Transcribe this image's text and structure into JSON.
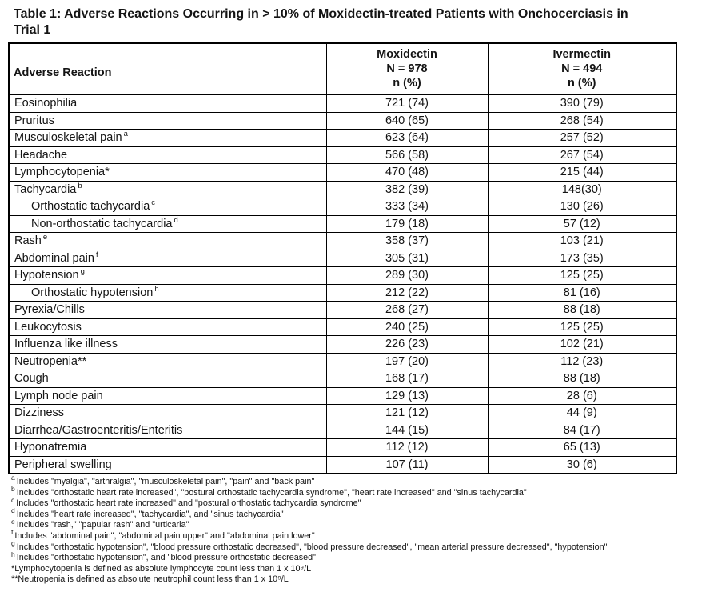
{
  "title": {
    "line1": "Table 1: Adverse Reactions Occurring in > 10% of Moxidectin-treated Patients with Onchocerciasis in",
    "line2": "Trial 1"
  },
  "table": {
    "headers": {
      "reaction": "Adverse Reaction",
      "moxidectin": [
        "Moxidectin",
        "N = 978",
        "n (%)"
      ],
      "ivermectin": [
        "Ivermectin",
        "N = 494",
        "n (%)"
      ]
    },
    "rows": [
      {
        "label": "Eosinophilia",
        "sup": "",
        "indent": false,
        "moxidectin": "721 (74)",
        "ivermectin": "390 (79)"
      },
      {
        "label": "Pruritus",
        "sup": "",
        "indent": false,
        "moxidectin": "640 (65)",
        "ivermectin": "268 (54)"
      },
      {
        "label": "Musculoskeletal pain",
        "sup": "a",
        "indent": false,
        "moxidectin": "623 (64)",
        "ivermectin": "257 (52)"
      },
      {
        "label": "Headache",
        "sup": "",
        "indent": false,
        "moxidectin": "566 (58)",
        "ivermectin": "267 (54)"
      },
      {
        "label": "Lymphocytopenia*",
        "sup": "",
        "indent": false,
        "moxidectin": "470 (48)",
        "ivermectin": "215 (44)"
      },
      {
        "label": "Tachycardia",
        "sup": "b",
        "indent": false,
        "moxidectin": "382 (39)",
        "ivermectin": "148(30)"
      },
      {
        "label": "Orthostatic tachycardia",
        "sup": "c",
        "indent": true,
        "moxidectin": "333 (34)",
        "ivermectin": "130 (26)"
      },
      {
        "label": "Non-orthostatic tachycardia",
        "sup": "d",
        "indent": true,
        "moxidectin": "179 (18)",
        "ivermectin": "57 (12)"
      },
      {
        "label": "Rash",
        "sup": "e",
        "indent": false,
        "moxidectin": "358 (37)",
        "ivermectin": "103 (21)"
      },
      {
        "label": "Abdominal pain",
        "sup": "f",
        "indent": false,
        "moxidectin": "305 (31)",
        "ivermectin": "173 (35)"
      },
      {
        "label": "Hypotension",
        "sup": "g",
        "indent": false,
        "moxidectin": "289 (30)",
        "ivermectin": "125 (25)"
      },
      {
        "label": "Orthostatic hypotension",
        "sup": "h",
        "indent": true,
        "moxidectin": "212 (22)",
        "ivermectin": "81 (16)"
      },
      {
        "label": "Pyrexia/Chills",
        "sup": "",
        "indent": false,
        "moxidectin": "268 (27)",
        "ivermectin": "88 (18)"
      },
      {
        "label": "Leukocytosis",
        "sup": "",
        "indent": false,
        "moxidectin": "240 (25)",
        "ivermectin": "125 (25)"
      },
      {
        "label": "Influenza like illness",
        "sup": "",
        "indent": false,
        "moxidectin": "226 (23)",
        "ivermectin": "102 (21)"
      },
      {
        "label": "Neutropenia**",
        "sup": "",
        "indent": false,
        "moxidectin": "197 (20)",
        "ivermectin": "112 (23)"
      },
      {
        "label": "Cough",
        "sup": "",
        "indent": false,
        "moxidectin": "168 (17)",
        "ivermectin": "88 (18)"
      },
      {
        "label": "Lymph node pain",
        "sup": "",
        "indent": false,
        "moxidectin": "129 (13)",
        "ivermectin": "28 (6)"
      },
      {
        "label": "Dizziness",
        "sup": "",
        "indent": false,
        "moxidectin": "121 (12)",
        "ivermectin": "44 (9)"
      },
      {
        "label": "Diarrhea/Gastroenteritis/Enteritis",
        "sup": "",
        "indent": false,
        "moxidectin": "144 (15)",
        "ivermectin": "84 (17)"
      },
      {
        "label": "Hyponatremia",
        "sup": "",
        "indent": false,
        "moxidectin": "112 (12)",
        "ivermectin": "65 (13)"
      },
      {
        "label": "Peripheral swelling",
        "sup": "",
        "indent": false,
        "moxidectin": "107 (11)",
        "ivermectin": "30 (6)"
      }
    ]
  },
  "footnotes": [
    {
      "marker": "a",
      "text": "Includes \"myalgia\", \"arthralgia\", \"musculoskeletal pain\", \"pain\" and \"back pain\""
    },
    {
      "marker": "b",
      "text": "Includes  \"orthostatic heart rate increased\", \"postural orthostatic tachycardia syndrome\", \"heart rate increased\" and \"sinus tachycardia\""
    },
    {
      "marker": "c",
      "text": "Includes \"orthostatic heart rate increased\" and \"postural orthostatic tachycardia syndrome\""
    },
    {
      "marker": "d",
      "text": "Includes \"heart rate increased\", \"tachycardia\", and \"sinus tachycardia\""
    },
    {
      "marker": "e",
      "text": "Includes  \"rash,\" \"papular rash\" and \"urticaria\""
    },
    {
      "marker": "f",
      "text": "Includes  \"abdominal pain\", \"abdominal pain upper\" and \"abdominal pain lower\""
    },
    {
      "marker": "g",
      "text": "Includes \"orthostatic hypotension\", \"blood pressure orthostatic decreased\", \"blood pressure decreased\", \"mean arterial pressure decreased\", \"hypotension\""
    },
    {
      "marker": "h",
      "text": "Includes \"orthostatic hypotension\", and \"blood pressure orthostatic decreased\""
    },
    {
      "marker": "*",
      "text": "Lymphocytopenia is defined as absolute lymphocyte count less than 1 x 10⁹/L"
    },
    {
      "marker": "**",
      "text": "Neutropenia is defined as absolute neutrophil count less than 1 x 10⁹/L"
    }
  ],
  "colors": {
    "text": "#141414",
    "border": "#000000",
    "background": "#ffffff"
  }
}
